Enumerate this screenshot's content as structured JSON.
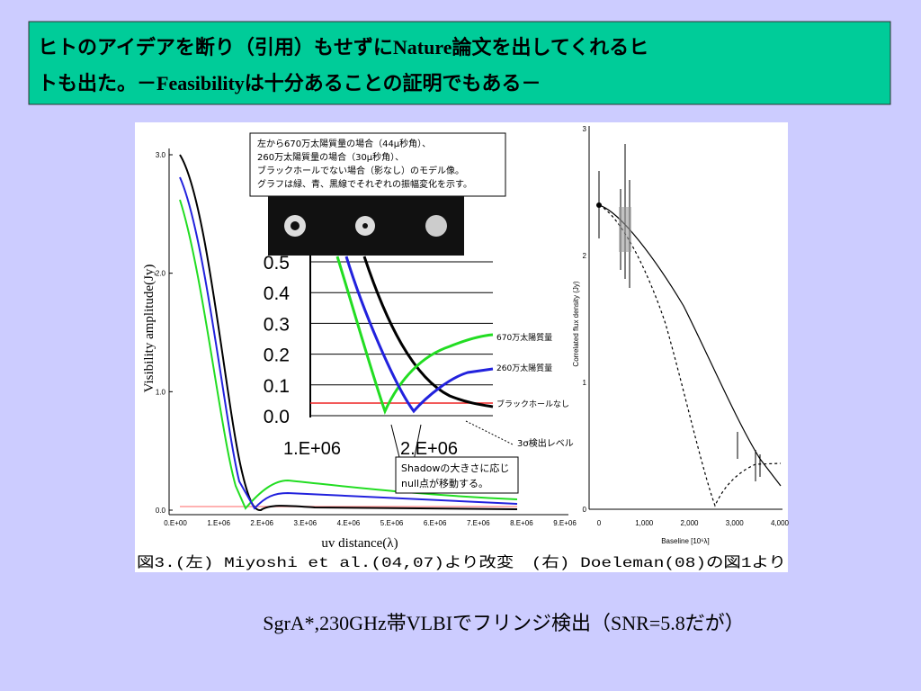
{
  "header": {
    "title_lines": [
      "ヒトのアイデアを断り（引用）もせずにNature論文を出してくれるヒ",
      "トも出た。－Feasibilityは十分あることの証明でもある－"
    ]
  },
  "figure": {
    "left": {
      "y_label": "Visibility amplitude(Jy)",
      "x_label": "uv distance(λ)",
      "yticks": [
        "3.0",
        "2.0",
        "1.0",
        "0.0"
      ],
      "xticks": [
        "0.E+00",
        "1.E+06",
        "2.E+06",
        "3.E+06",
        "4.E+06",
        "5.E+06",
        "6.E+06",
        "7.E+06",
        "8.E+06",
        "9.E+06"
      ],
      "note": [
        "左から670万太陽質量の場合（44μ秒角）、",
        "260万太陽質量の場合（30μ秒角）、",
        "ブラックホールでない場合（影なし）のモデル像。",
        "グラフは緑、青、黒線でそれぞれの振幅変化を示す。"
      ],
      "inset_yticks": [
        "0.5",
        "0.4",
        "0.3",
        "0.2",
        "0.1",
        "0.0"
      ],
      "inset_xticks": [
        "1.E+06",
        "2.E+06"
      ],
      "inset_legend": [
        "670万太陽質量",
        "260万太陽質量",
        "ブラックホールなし"
      ],
      "detection_label": "3σ検出レベル",
      "shadow_note": [
        "Shadowの大きさに応じ",
        "null点が移動する。"
      ]
    },
    "right": {
      "y_label": "Correlated flux density (Jy)",
      "x_label": "Baseline [10⁶λ]",
      "yticks": [
        "3",
        "2",
        "1",
        "0"
      ],
      "xticks": [
        "0",
        "1,000",
        "2,000",
        "3,000",
        "4,000"
      ]
    },
    "caption": "図3.(左) Miyoshi et al.(04,07)より改変　(右) Doeleman(08)の図1より"
  },
  "footer": {
    "text": "SgrA*,230GHz帯VLBIでフリンジ検出（SNR=5.8だが）"
  }
}
